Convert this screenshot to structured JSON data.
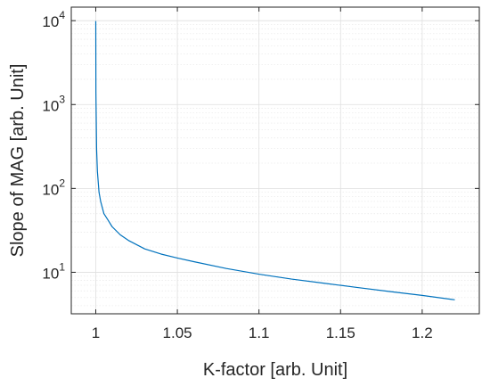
{
  "chart_data": {
    "type": "line",
    "xlabel": "K-factor [arb. Unit]",
    "ylabel": "Slope of MAG [arb. Unit]",
    "xlim": [
      0.985,
      1.235
    ],
    "ylim": [
      3.2,
      14500
    ],
    "yscale": "log",
    "grid": true,
    "minor_grid": true,
    "line_color": "#0072bd",
    "x_ticks": [
      1,
      1.05,
      1.1,
      1.15,
      1.2
    ],
    "x_tick_labels": [
      "1",
      "1.05",
      "1.1",
      "1.15",
      "1.2"
    ],
    "y_ticks": [
      {
        "value": 10,
        "base": "10",
        "exp": "1"
      },
      {
        "value": 100,
        "base": "10",
        "exp": "2"
      },
      {
        "value": 1000,
        "base": "10",
        "exp": "3"
      },
      {
        "value": 10000,
        "base": "10",
        "exp": "4"
      }
    ],
    "series": [
      {
        "x": [
          1.00001,
          1.0001,
          1.0005,
          1.001,
          1.002,
          1.003,
          1.005,
          1.0075,
          1.01,
          1.015,
          1.02,
          1.03,
          1.04,
          1.05,
          1.06,
          1.08,
          1.1,
          1.12,
          1.14,
          1.16,
          1.18,
          1.2,
          1.22
        ],
        "y": [
          9900,
          1400,
          300,
          160,
          90,
          70,
          50,
          42,
          35,
          28,
          24,
          19,
          16.5,
          14.8,
          13.4,
          11.1,
          9.5,
          8.3,
          7.4,
          6.6,
          5.9,
          5.3,
          4.7
        ]
      }
    ]
  }
}
